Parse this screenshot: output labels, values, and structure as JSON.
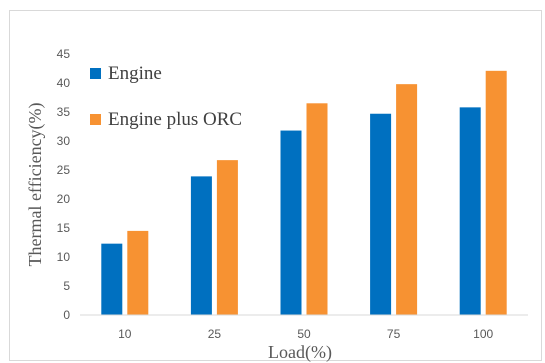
{
  "chart_data": {
    "type": "bar",
    "categories": [
      "10",
      "25",
      "50",
      "75",
      "100"
    ],
    "series": [
      {
        "name": "Engine",
        "color": "#0070C0",
        "values": [
          12.3,
          23.9,
          31.8,
          34.7,
          35.8
        ]
      },
      {
        "name": "Engine plus ORC",
        "color": "#F79232",
        "values": [
          14.5,
          26.7,
          36.5,
          39.8,
          42.1
        ]
      }
    ],
    "xlabel": "Load(%)",
    "ylabel": "Thermal efficiency(%)",
    "ylim": [
      0,
      45
    ],
    "yticks": [
      0,
      5,
      10,
      15,
      20,
      25,
      30,
      35,
      40,
      45
    ],
    "grid": false,
    "legend_position": "top-left"
  }
}
